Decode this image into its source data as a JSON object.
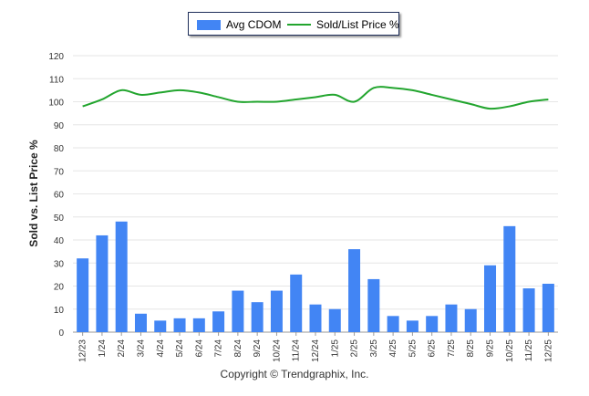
{
  "legend": {
    "bar_label": "Avg CDOM",
    "line_label": "Sold/List Price %"
  },
  "footer": {
    "copyright": "Copyright © Trendgraphix, Inc."
  },
  "chart_data": {
    "type": "bar",
    "categories": [
      "12/23",
      "1/24",
      "2/24",
      "3/24",
      "4/24",
      "5/24",
      "6/24",
      "7/24",
      "8/24",
      "9/24",
      "10/24",
      "11/24",
      "12/24",
      "1/25",
      "2/25",
      "3/25",
      "4/25",
      "5/25",
      "6/25",
      "7/25",
      "8/25",
      "9/25",
      "10/25",
      "11/25",
      "12/25"
    ],
    "series": [
      {
        "name": "Avg CDOM",
        "type": "bar",
        "color": "#4285f4",
        "values": [
          32,
          42,
          48,
          8,
          5,
          6,
          6,
          9,
          18,
          13,
          18,
          25,
          12,
          10,
          36,
          23,
          7,
          5,
          7,
          12,
          10,
          29,
          46,
          19,
          21
        ]
      },
      {
        "name": "Sold/List Price %",
        "type": "line",
        "color": "#22a52e",
        "values": [
          98,
          101,
          105,
          103,
          104,
          105,
          104,
          102,
          100,
          100,
          100,
          101,
          102,
          103,
          100,
          106,
          106,
          105,
          103,
          101,
          99,
          97,
          98,
          100,
          101
        ]
      }
    ],
    "ylabel": "Sold vs. List Price %",
    "ylim": [
      0,
      120
    ],
    "yticks": [
      0,
      10,
      20,
      30,
      40,
      50,
      60,
      70,
      80,
      90,
      100,
      110,
      120
    ],
    "grid": true,
    "legend_position": "top-center"
  }
}
